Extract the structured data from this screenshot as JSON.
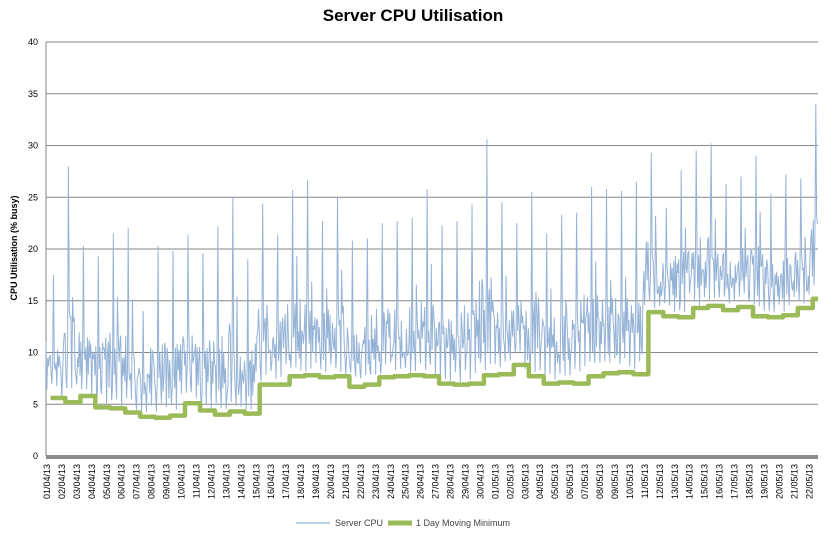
{
  "chart_data": {
    "type": "line",
    "title": "Server CPU Utilisation",
    "xlabel": "",
    "ylabel": "CPU Utilisation (% busy)",
    "ylim": [
      0,
      40
    ],
    "yticks": [
      0,
      5,
      10,
      15,
      20,
      25,
      30,
      35,
      40
    ],
    "grid": true,
    "legend_position": "bottom",
    "x_dates": [
      "01/04/13",
      "02/04/13",
      "03/04/13",
      "04/04/13",
      "05/04/13",
      "06/04/13",
      "07/04/13",
      "08/04/13",
      "09/04/13",
      "10/04/13",
      "11/04/13",
      "12/04/13",
      "13/04/13",
      "14/04/13",
      "15/04/13",
      "16/04/13",
      "17/04/13",
      "18/04/13",
      "19/04/13",
      "20/04/13",
      "21/04/13",
      "22/04/13",
      "23/04/13",
      "24/04/13",
      "25/04/13",
      "26/04/13",
      "27/04/13",
      "28/04/13",
      "29/04/13",
      "30/04/13",
      "01/05/13",
      "02/05/13",
      "03/05/13",
      "04/05/13",
      "05/05/13",
      "06/05/13",
      "07/05/13",
      "08/05/13",
      "09/05/13",
      "10/05/13",
      "11/05/13",
      "12/05/13",
      "13/05/13",
      "14/05/13",
      "15/05/13",
      "16/05/13",
      "17/05/13",
      "18/05/13",
      "19/05/13",
      "20/05/13",
      "21/05/13",
      "22/05/13"
    ],
    "series": [
      {
        "name": "Server CPU",
        "color": "#95b3d7",
        "daily_peak": [
          17.5,
          28,
          20.3,
          19.3,
          21.5,
          22,
          14,
          20.3,
          19.8,
          21.4,
          19.6,
          22.2,
          25,
          19,
          24.4,
          21.4,
          25.7,
          26.7,
          22.7,
          25,
          20.8,
          21,
          22.5,
          22.7,
          23,
          25.8,
          22.3,
          22.7,
          24.3,
          30.6,
          24.5,
          22.5,
          25.5,
          21.5,
          23.3,
          23.5,
          26,
          25.8,
          25.6,
          26.5,
          29.3,
          24,
          27.6,
          29.5,
          30.2,
          26.3,
          27,
          29,
          25.3,
          27.2,
          26.8,
          34
        ]
      },
      {
        "name": "1 Day Moving Minimum",
        "color": "#9bbb59",
        "values": [
          5.6,
          5.2,
          5.8,
          4.7,
          4.6,
          4.2,
          3.8,
          3.7,
          3.9,
          5.1,
          4.4,
          4.0,
          4.3,
          4.1,
          6.9,
          6.9,
          7.7,
          7.8,
          7.6,
          7.7,
          6.7,
          6.9,
          7.6,
          7.7,
          7.8,
          7.7,
          7.0,
          6.9,
          7.0,
          7.8,
          7.9,
          8.8,
          7.7,
          7.0,
          7.1,
          7.0,
          7.7,
          8.0,
          8.1,
          7.9,
          13.9,
          13.5,
          13.4,
          14.3,
          14.5,
          14.1,
          14.4,
          13.5,
          13.4,
          13.6,
          14.3,
          15.2
        ]
      }
    ]
  }
}
